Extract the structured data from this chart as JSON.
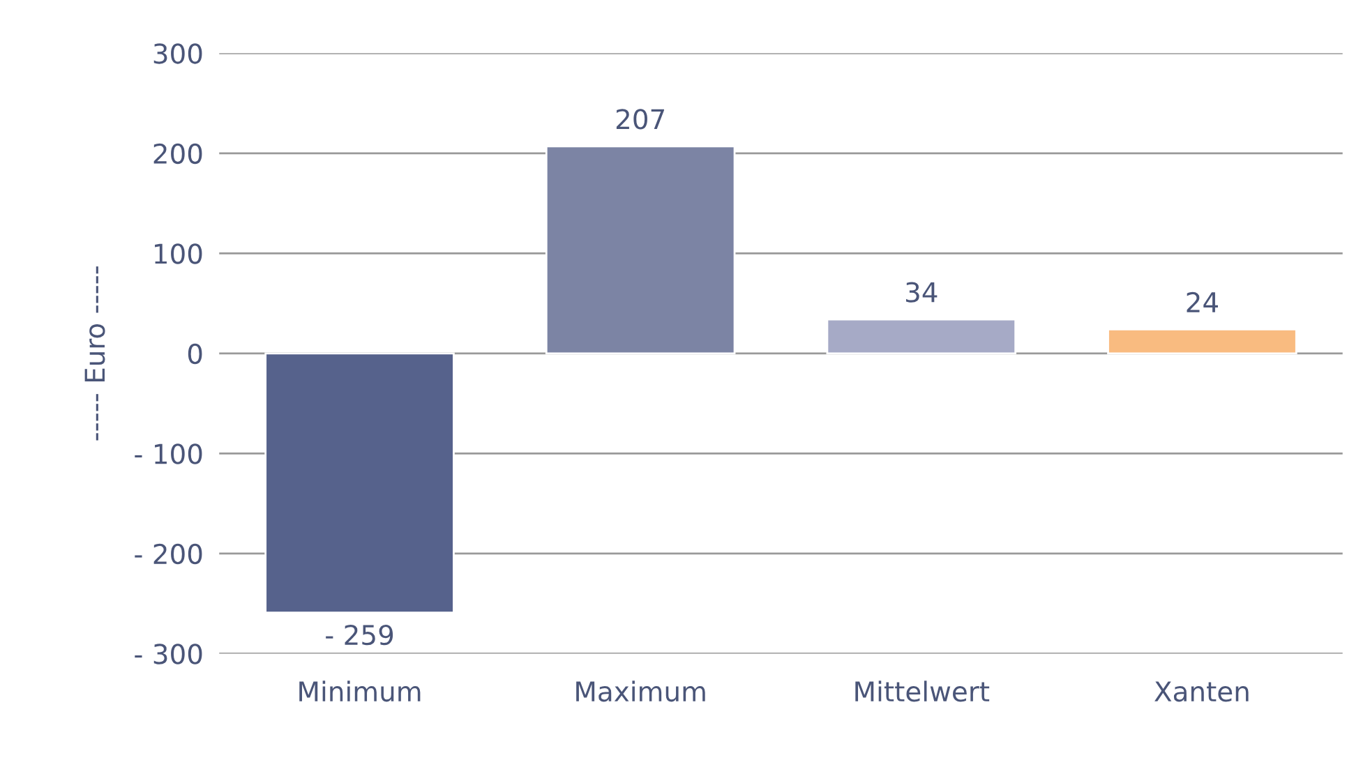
{
  "chart_data": {
    "type": "bar",
    "ylabel": "----- Euro -----",
    "categories": [
      "Minimum",
      "Maximum",
      "Mittelwert",
      "Xanten"
    ],
    "values": [
      -259,
      207,
      34,
      24
    ],
    "colors": [
      "#56628c",
      "#7c84a4",
      "#a6aac6",
      "#f9bb80"
    ],
    "value_labels": [
      "- 259",
      "207",
      "34",
      "24"
    ],
    "ylim": [
      -300,
      300
    ],
    "yticks": [
      {
        "value": -300,
        "label": "- 300"
      },
      {
        "value": -200,
        "label": "- 200"
      },
      {
        "value": -100,
        "label": "- 100"
      },
      0,
      100,
      200,
      300
    ],
    "grid": "y"
  }
}
